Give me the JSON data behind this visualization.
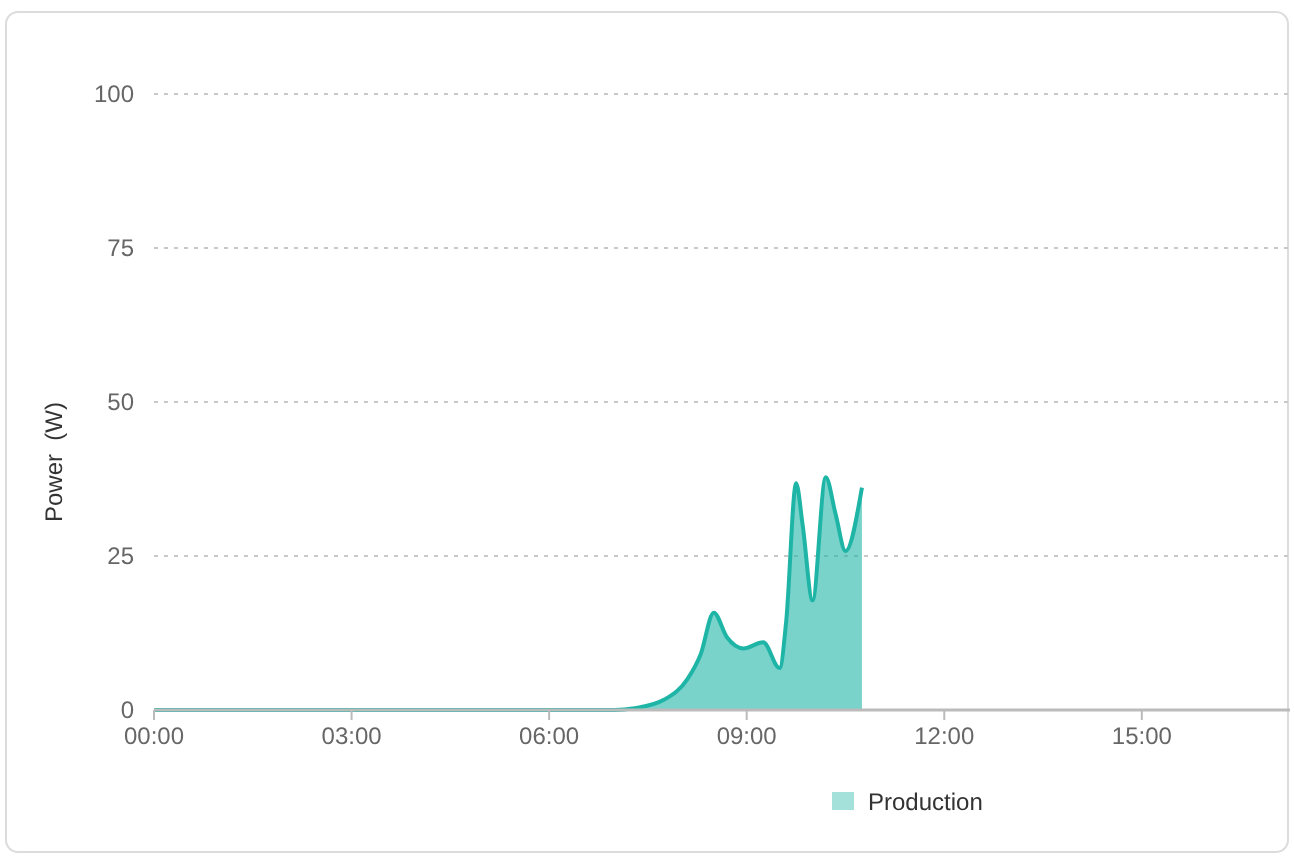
{
  "chart_data": {
    "type": "area",
    "ylabel": "Power  (W)",
    "x": [
      0,
      7.0,
      7.3,
      7.75,
      8.1,
      8.3,
      8.5,
      8.7,
      8.95,
      9.25,
      9.5,
      9.6,
      9.75,
      9.85,
      10.0,
      10.2,
      10.35,
      10.5,
      10.75
    ],
    "series": [
      {
        "name": "Production",
        "color": "#1fb5a6",
        "values": [
          0,
          0,
          0.3,
          1.7,
          5,
          9,
          15.8,
          11.8,
          10,
          11,
          6.8,
          14.4,
          36.8,
          30,
          17.8,
          37.8,
          31.8,
          25.8,
          36.1
        ]
      }
    ],
    "xlim": [
      0,
      17.25
    ],
    "xticks": [
      {
        "value": 0,
        "label": "00:00"
      },
      {
        "value": 3,
        "label": "03:00"
      },
      {
        "value": 6,
        "label": "06:00"
      },
      {
        "value": 9,
        "label": "09:00"
      },
      {
        "value": 12,
        "label": "12:00"
      },
      {
        "value": 15,
        "label": "15:00"
      }
    ],
    "ylim": [
      0,
      100
    ],
    "yticks": [
      0,
      25,
      50,
      75,
      100
    ],
    "grid": "y",
    "legend": "bottom",
    "marker": "none"
  }
}
